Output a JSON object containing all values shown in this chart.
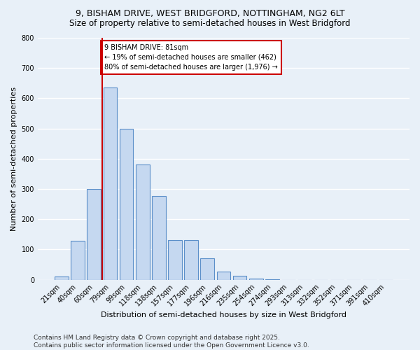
{
  "title1": "9, BISHAM DRIVE, WEST BRIDGFORD, NOTTINGHAM, NG2 6LT",
  "title2": "Size of property relative to semi-detached houses in West Bridgford",
  "xlabel": "Distribution of semi-detached houses by size in West Bridgford",
  "ylabel": "Number of semi-detached properties",
  "footer1": "Contains HM Land Registry data © Crown copyright and database right 2025.",
  "footer2": "Contains public sector information licensed under the Open Government Licence v3.0.",
  "categories": [
    "21sqm",
    "40sqm",
    "60sqm",
    "79sqm",
    "99sqm",
    "118sqm",
    "138sqm",
    "157sqm",
    "177sqm",
    "196sqm",
    "216sqm",
    "235sqm",
    "254sqm",
    "274sqm",
    "293sqm",
    "313sqm",
    "332sqm",
    "352sqm",
    "371sqm",
    "391sqm",
    "410sqm"
  ],
  "values": [
    10,
    128,
    300,
    635,
    500,
    380,
    278,
    130,
    130,
    72,
    27,
    12,
    5,
    2,
    0,
    0,
    0,
    0,
    0,
    0,
    0
  ],
  "bar_color": "#c5d8f0",
  "bar_edge_color": "#5b8fc9",
  "vline_index": 3,
  "vline_color": "#cc0000",
  "annotation_text": "9 BISHAM DRIVE: 81sqm\n← 19% of semi-detached houses are smaller (462)\n80% of semi-detached houses are larger (1,976) →",
  "annotation_box_color": "#ffffff",
  "annotation_box_edge_color": "#cc0000",
  "ylim": [
    0,
    800
  ],
  "yticks": [
    0,
    100,
    200,
    300,
    400,
    500,
    600,
    700,
    800
  ],
  "bg_color": "#e8f0f8",
  "plot_bg_color": "#e8f0f8",
  "grid_color": "#ffffff",
  "title_fontsize": 9,
  "subtitle_fontsize": 8.5,
  "label_fontsize": 8,
  "tick_fontsize": 7,
  "footer_fontsize": 6.5
}
